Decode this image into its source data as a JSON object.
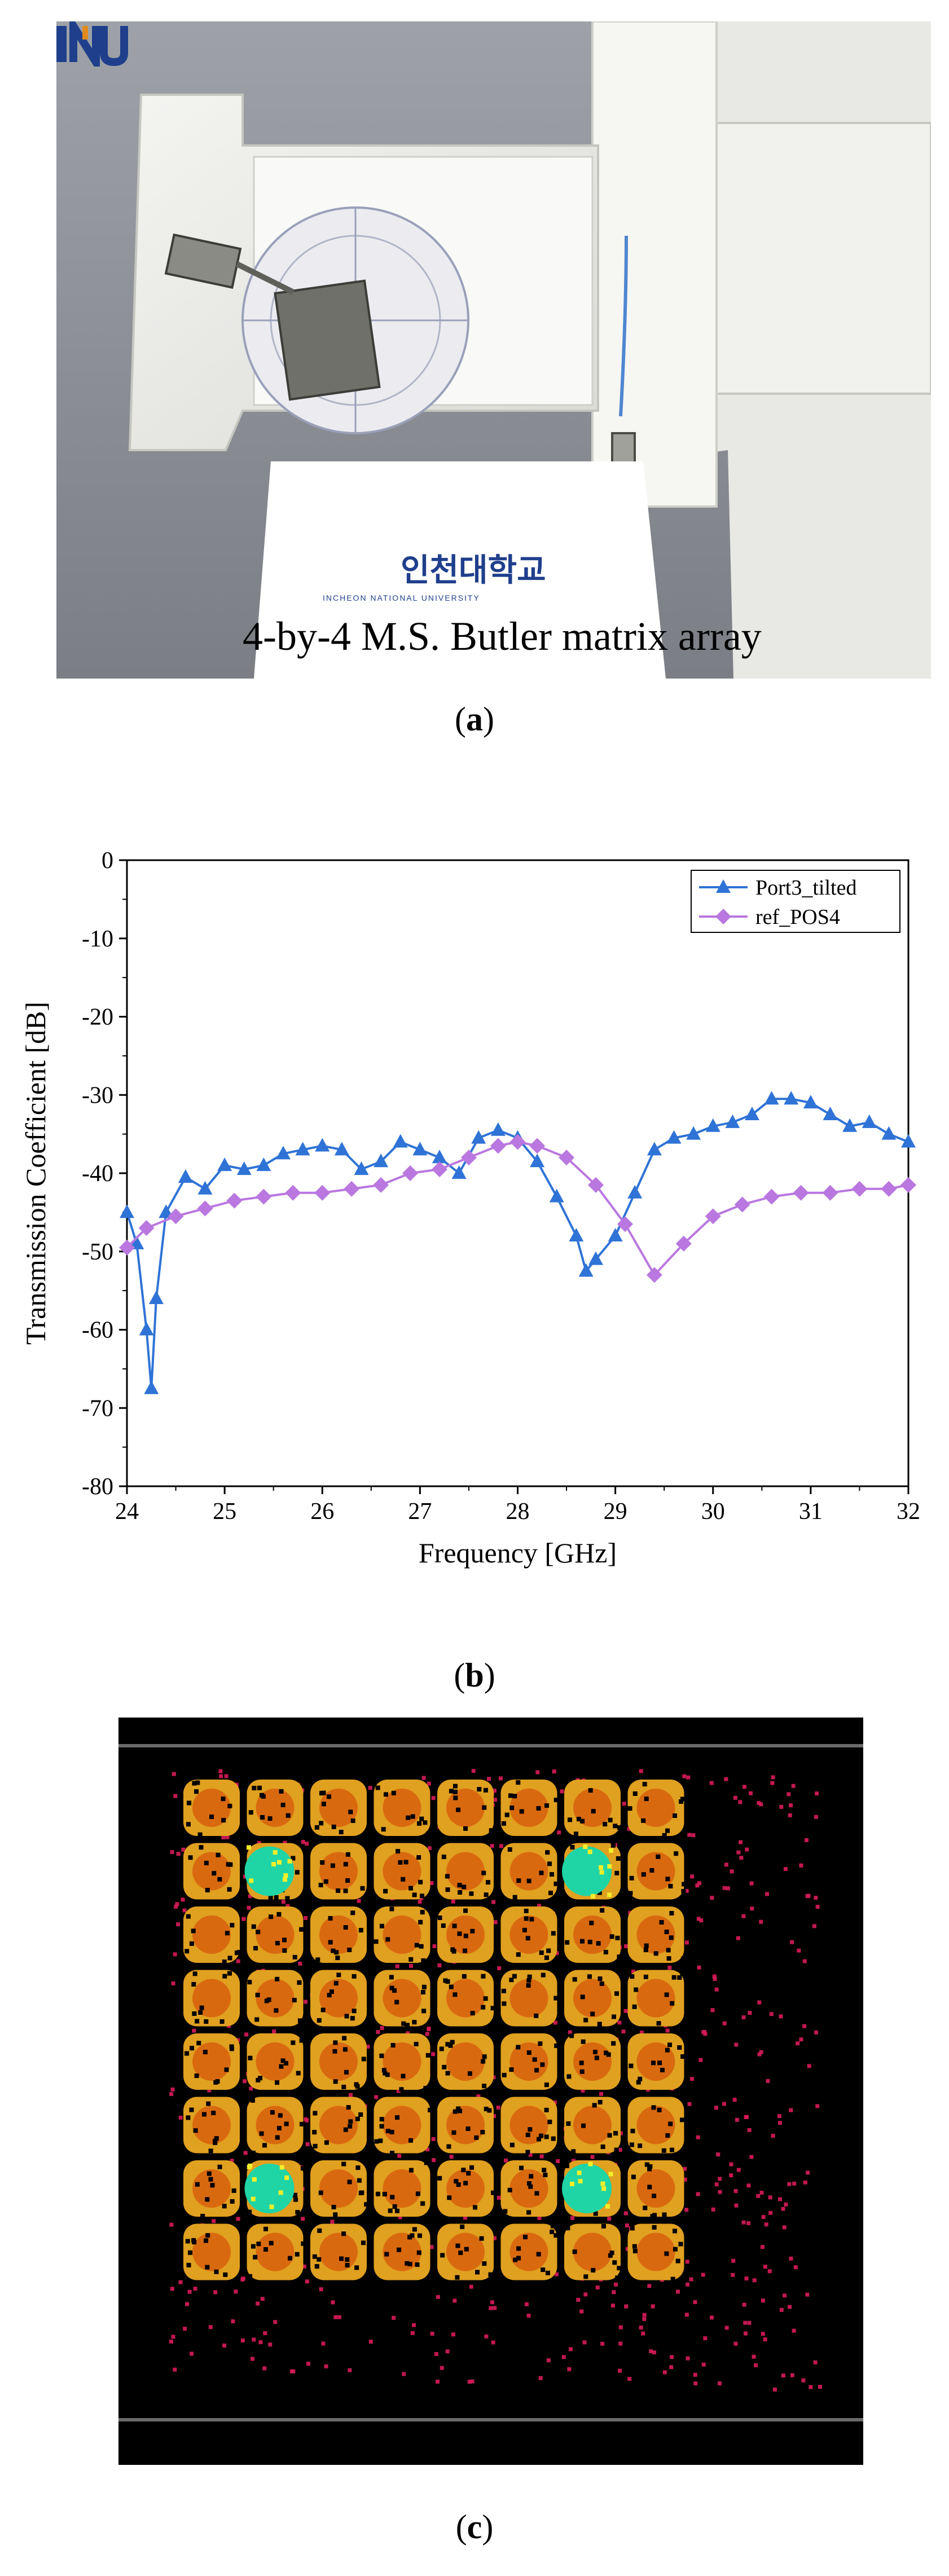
{
  "figure": {
    "panel_a": {
      "caption_letter": "a",
      "photo_label": "4-by-4 M.S. Butler matrix array",
      "logo_text": "INU 인천대학교",
      "logo_subtext": "INCHEON NATIONAL UNIVERSITY"
    },
    "panel_b": {
      "caption_letter": "b"
    },
    "panel_c": {
      "caption_letter": "c",
      "colors": {
        "background": "#000000",
        "low": "#d81b5a",
        "mid": "#e0a020",
        "high": "#d9690f",
        "peak": "#1fd5a5",
        "peak_edge": "#f4ee2a",
        "frame_line": "#6b6b6b"
      }
    }
  },
  "chart_data": {
    "type": "line",
    "xlabel": "Frequency [GHz]",
    "ylabel": "Transmission Coefficient [dB]",
    "xlim": [
      24,
      32
    ],
    "ylim": [
      -80,
      0
    ],
    "xticks": [
      24,
      25,
      26,
      27,
      28,
      29,
      30,
      31,
      32
    ],
    "yticks": [
      0,
      -10,
      -20,
      -30,
      -40,
      -50,
      -60,
      -70,
      -80
    ],
    "legend_position": "top-right",
    "series": [
      {
        "name": "Port3_tilted",
        "color": "#2f73d6",
        "marker": "triangle",
        "x": [
          24.0,
          24.1,
          24.2,
          24.25,
          24.3,
          24.4,
          24.6,
          24.8,
          25.0,
          25.2,
          25.4,
          25.6,
          25.8,
          26.0,
          26.2,
          26.4,
          26.6,
          26.8,
          27.0,
          27.2,
          27.4,
          27.6,
          27.8,
          28.0,
          28.2,
          28.4,
          28.6,
          28.7,
          28.8,
          29.0,
          29.2,
          29.4,
          29.6,
          29.8,
          30.0,
          30.2,
          30.4,
          30.6,
          30.8,
          31.0,
          31.2,
          31.4,
          31.6,
          31.8,
          32.0
        ],
        "y": [
          -45,
          -49,
          -60,
          -67.5,
          -56,
          -45,
          -40.5,
          -42,
          -39,
          -39.5,
          -39,
          -37.5,
          -37,
          -36.5,
          -37,
          -39.5,
          -38.5,
          -36,
          -37,
          -38,
          -40,
          -35.5,
          -34.5,
          -35.5,
          -38.5,
          -43,
          -48,
          -52.5,
          -51,
          -48,
          -42.5,
          -37,
          -35.5,
          -35,
          -34,
          -33.5,
          -32.5,
          -30.5,
          -30.5,
          -31,
          -32.5,
          -34,
          -33.5,
          -35,
          -36
        ]
      },
      {
        "name": "ref_POS4",
        "color": "#b977df",
        "marker": "diamond",
        "x": [
          24.0,
          24.2,
          24.5,
          24.8,
          25.1,
          25.4,
          25.7,
          26.0,
          26.3,
          26.6,
          26.9,
          27.2,
          27.5,
          27.8,
          28.0,
          28.2,
          28.5,
          28.8,
          29.1,
          29.4,
          29.7,
          30.0,
          30.3,
          30.6,
          30.9,
          31.2,
          31.5,
          31.8,
          32.0
        ],
        "y": [
          -49.5,
          -47,
          -45.5,
          -44.5,
          -43.5,
          -43,
          -42.5,
          -42.5,
          -42,
          -41.5,
          -40,
          -39.5,
          -38,
          -36.5,
          -36,
          -36.5,
          -38,
          -41.5,
          -46.5,
          -53,
          -49,
          -45.5,
          -44,
          -43,
          -42.5,
          -42.5,
          -42,
          -42,
          -41.5
        ]
      }
    ]
  }
}
